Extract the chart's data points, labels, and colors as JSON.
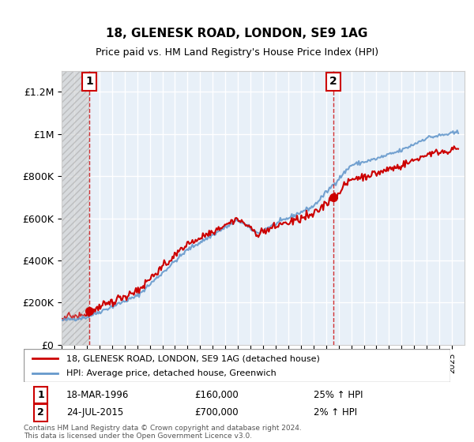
{
  "title": "18, GLENESK ROAD, LONDON, SE9 1AG",
  "subtitle": "Price paid vs. HM Land Registry's House Price Index (HPI)",
  "legend_line1": "18, GLENESK ROAD, LONDON, SE9 1AG (detached house)",
  "legend_line2": "HPI: Average price, detached house, Greenwich",
  "transaction1_label": "1",
  "transaction1_date": "18-MAR-1996",
  "transaction1_price": "£160,000",
  "transaction1_hpi": "25% ↑ HPI",
  "transaction1_year": 1996.21,
  "transaction1_value": 160000,
  "transaction2_label": "2",
  "transaction2_date": "24-JUL-2015",
  "transaction2_price": "£700,000",
  "transaction2_hpi": "2% ↑ HPI",
  "transaction2_year": 2015.56,
  "transaction2_value": 700000,
  "footer": "Contains HM Land Registry data © Crown copyright and database right 2024.\nThis data is licensed under the Open Government Licence v3.0.",
  "xmin": 1994,
  "xmax": 2026,
  "ymin": 0,
  "ymax": 1300000,
  "red_color": "#cc0000",
  "blue_color": "#6699cc",
  "background_color": "#ffffff",
  "plot_bg_color": "#e8f0f8",
  "hatch_bg_color": "#d0d0d0"
}
